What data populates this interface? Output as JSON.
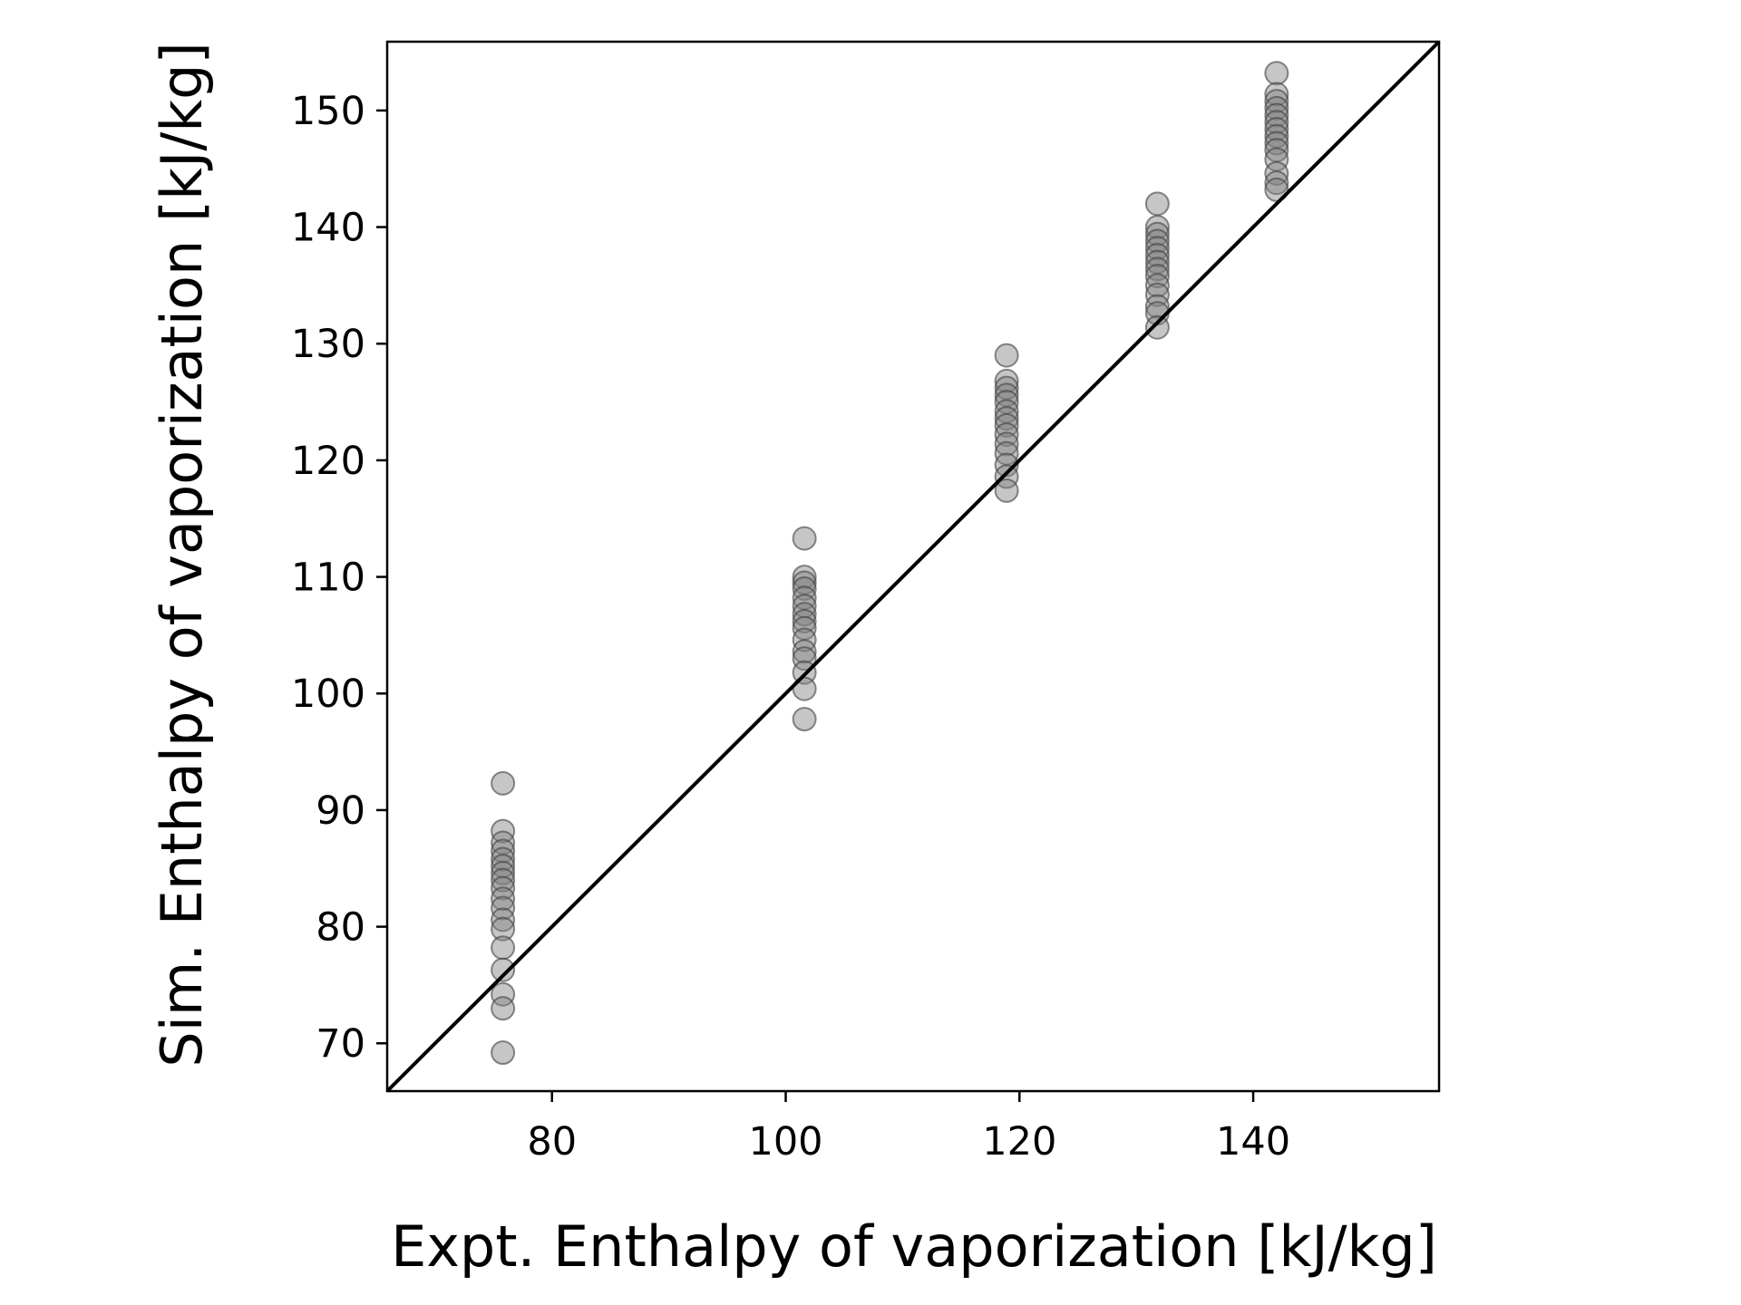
{
  "chart_data": {
    "type": "scatter",
    "title": "",
    "xlabel": "Expt. Enthalpy of vaporization [kJ/kg]",
    "ylabel": "Sim. Enthalpy of vaporization [kJ/kg]",
    "xlim": [
      65.9,
      155.9
    ],
    "ylim": [
      65.9,
      155.9
    ],
    "xticks": [
      80,
      100,
      120,
      140
    ],
    "yticks": [
      70,
      80,
      90,
      100,
      110,
      120,
      130,
      140,
      150
    ],
    "grid": false,
    "legend": "none",
    "marker_color": "#808080",
    "marker_edge_color": "#404040",
    "marker_alpha": 0.45,
    "reference_line": {
      "type": "identity",
      "color": "#000000"
    },
    "points": [
      {
        "x": 75.8,
        "values": [
          92.3,
          88.2,
          87.2,
          86.5,
          85.8,
          85.2,
          84.6,
          84.0,
          83.3,
          82.4,
          81.6,
          80.6,
          79.8,
          78.2,
          76.3,
          74.2,
          73.0,
          69.2
        ]
      },
      {
        "x": 101.6,
        "values": [
          113.3,
          110.0,
          109.5,
          109.0,
          108.2,
          107.5,
          106.8,
          106.2,
          105.6,
          104.6,
          103.6,
          103.0,
          101.8,
          100.4,
          97.8
        ]
      },
      {
        "x": 118.9,
        "values": [
          129.0,
          126.8,
          126.2,
          125.6,
          125.0,
          124.2,
          123.6,
          123.0,
          122.2,
          121.4,
          120.6,
          119.6,
          118.6,
          117.4
        ]
      },
      {
        "x": 131.8,
        "values": [
          142.0,
          140.0,
          139.4,
          138.8,
          138.2,
          137.6,
          137.0,
          136.4,
          135.8,
          135.0,
          134.2,
          133.2,
          132.6,
          131.4
        ]
      },
      {
        "x": 142.0,
        "values": [
          153.2,
          151.4,
          150.8,
          150.2,
          149.6,
          149.0,
          148.4,
          147.8,
          147.2,
          146.6,
          145.8,
          144.6,
          143.8,
          143.2
        ]
      }
    ]
  }
}
